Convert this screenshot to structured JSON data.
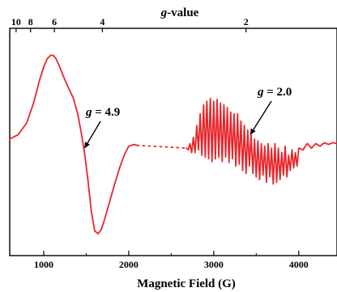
{
  "chart_data": {
    "type": "line",
    "title": "",
    "xlabel": "Magnetic Field (G)",
    "ylabel": "",
    "top_axis_label_italic": "g",
    "top_axis_label_rest": "-value",
    "xlim": [
      600,
      4450
    ],
    "ylim": [
      -1.15,
      1.05
    ],
    "x_ticks": [
      1000,
      2000,
      3000,
      4000
    ],
    "x_tick_labels": [
      "1000",
      "2000",
      "3000",
      "4000"
    ],
    "top_ticks": [
      {
        "label": "10",
        "field": 675
      },
      {
        "label": "8",
        "field": 845
      },
      {
        "label": "6",
        "field": 1125
      },
      {
        "label": "4",
        "field": 1690
      },
      {
        "label": "2",
        "field": 3380
      }
    ],
    "grid": false,
    "line_color": "#e8262b",
    "annotations": [
      {
        "g": "g",
        "text": " = 4.9",
        "tip": [
          1480,
          -0.1
        ]
      },
      {
        "g": "g",
        "text": " = 2.0",
        "tip": [
          3430,
          0.05
        ]
      }
    ],
    "segments": [
      {
        "style": "solid",
        "x": [
          600,
          700,
          800,
          880,
          950,
          1000,
          1040,
          1080,
          1110,
          1140,
          1180,
          1230,
          1290,
          1350,
          1400,
          1440,
          1480,
          1520,
          1560,
          1600,
          1640,
          1680,
          1720,
          1780,
          1840,
          1900,
          1950,
          2000,
          2060,
          2100
        ],
        "y": [
          0.0,
          0.05,
          0.18,
          0.4,
          0.65,
          0.8,
          0.89,
          0.93,
          0.93,
          0.9,
          0.82,
          0.7,
          0.57,
          0.45,
          0.28,
          0.08,
          -0.15,
          -0.45,
          -0.8,
          -1.02,
          -1.05,
          -1.0,
          -0.88,
          -0.68,
          -0.48,
          -0.3,
          -0.17,
          -0.08,
          -0.06,
          -0.07
        ]
      },
      {
        "style": "dotted",
        "x": [
          2100,
          2680
        ],
        "y": [
          -0.07,
          -0.1
        ]
      },
      {
        "style": "solid",
        "x": [
          2680,
          2700,
          2720,
          2740,
          2760,
          2780,
          2800,
          2820,
          2840,
          2860,
          2880,
          2900,
          2920,
          2940,
          2960,
          2980,
          3000,
          3020,
          3040,
          3060,
          3080,
          3100,
          3120,
          3140,
          3160,
          3180,
          3200,
          3220,
          3240,
          3260,
          3280,
          3300,
          3320,
          3340,
          3360,
          3380,
          3400,
          3420,
          3440,
          3460,
          3480,
          3500,
          3520,
          3540,
          3560,
          3580,
          3600,
          3620,
          3640,
          3660,
          3680,
          3700,
          3720,
          3740,
          3760,
          3780,
          3800,
          3820,
          3840,
          3860,
          3880,
          3900,
          3920,
          3940,
          3960,
          3980,
          4000,
          4050,
          4100,
          4150,
          4200,
          4250,
          4300,
          4350,
          4400,
          4450
        ],
        "y": [
          -0.1,
          -0.12,
          -0.05,
          -0.15,
          0.02,
          -0.15,
          0.15,
          -0.12,
          0.28,
          -0.18,
          0.38,
          -0.2,
          0.42,
          -0.22,
          0.45,
          -0.25,
          0.42,
          -0.22,
          0.44,
          -0.2,
          0.4,
          -0.25,
          0.38,
          -0.2,
          0.35,
          -0.26,
          0.3,
          -0.22,
          0.28,
          -0.3,
          0.28,
          -0.28,
          0.2,
          -0.35,
          0.15,
          -0.38,
          0.1,
          -0.3,
          0.05,
          -0.38,
          0.0,
          -0.42,
          -0.02,
          -0.45,
          -0.05,
          -0.4,
          -0.08,
          -0.48,
          -0.05,
          -0.42,
          -0.1,
          -0.5,
          -0.05,
          -0.48,
          -0.1,
          -0.45,
          -0.15,
          -0.4,
          -0.08,
          -0.42,
          -0.18,
          -0.35,
          -0.12,
          -0.32,
          -0.15,
          -0.3,
          -0.1,
          -0.12,
          -0.05,
          -0.1,
          -0.05,
          -0.08,
          -0.04,
          -0.06,
          -0.04,
          -0.05
        ]
      }
    ]
  }
}
